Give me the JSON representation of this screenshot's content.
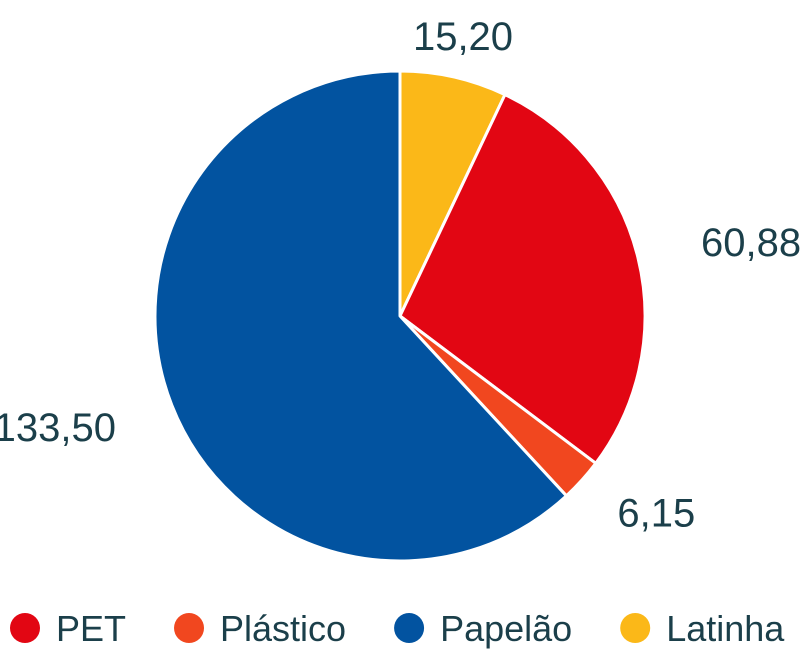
{
  "chart_data": {
    "type": "pie",
    "slices": [
      {
        "label": "Latinha",
        "value": 15.2,
        "display": "15,20",
        "color": "#fbb818"
      },
      {
        "label": "PET",
        "value": 60.88,
        "display": "60,88",
        "color": "#e20613"
      },
      {
        "label": "Plástico",
        "value": 6.15,
        "display": "6,15",
        "color": "#f1471f"
      },
      {
        "label": "Papelão",
        "value": 133.5,
        "display": "133,50",
        "color": "#0253a0"
      }
    ],
    "start": "12 o'clock",
    "direction": "clockwise",
    "legend": {
      "position": "bottom",
      "order": [
        "PET",
        "Plástico",
        "Papelão",
        "Latinha"
      ]
    },
    "label_color": "#1b3f4a",
    "separator_color": "#ffffff"
  }
}
